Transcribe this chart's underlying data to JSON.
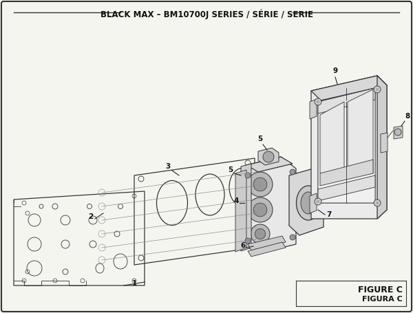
{
  "title": "BLACK MAX – BM10700J SERIES / SÉRIE / SERIE",
  "figure_label": "FIGURE C",
  "figure_label2": "FIGURA C",
  "bg_color": "#f5f5f0",
  "border_color": "#333333",
  "line_color": "#333333",
  "title_fontsize": 8.5,
  "label_fontsize": 7.5
}
